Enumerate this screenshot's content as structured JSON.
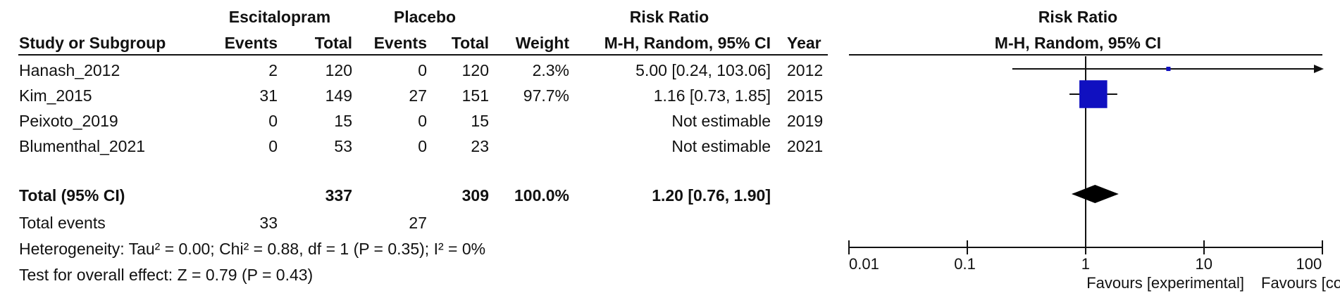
{
  "header": {
    "exp_group": "Escitalopram",
    "ctl_group": "Placebo",
    "risk_ratio": "Risk Ratio",
    "study_col": "Study or Subgroup",
    "events": "Events",
    "total": "Total",
    "weight": "Weight",
    "method": "M-H, Random, 95% CI",
    "year": "Year",
    "plot_title": "Risk Ratio",
    "plot_method": "M-H, Random, 95% CI"
  },
  "studies": [
    {
      "name": "Hanash_2012",
      "exp_events": "2",
      "exp_total": "120",
      "ctl_events": "0",
      "ctl_total": "120",
      "weight": "2.3%",
      "ci": "5.00 [0.24, 103.06]",
      "year": "2012"
    },
    {
      "name": "Kim_2015",
      "exp_events": "31",
      "exp_total": "149",
      "ctl_events": "27",
      "ctl_total": "151",
      "weight": "97.7%",
      "ci": "1.16 [0.73, 1.85]",
      "year": "2015"
    },
    {
      "name": "Peixoto_2019",
      "exp_events": "0",
      "exp_total": "15",
      "ctl_events": "0",
      "ctl_total": "15",
      "weight": "",
      "ci": "Not estimable",
      "year": "2019"
    },
    {
      "name": "Blumenthal_2021",
      "exp_events": "0",
      "exp_total": "53",
      "ctl_events": "0",
      "ctl_total": "23",
      "weight": "",
      "ci": "Not estimable",
      "year": "2021"
    }
  ],
  "total": {
    "label": "Total (95% CI)",
    "exp_total": "337",
    "ctl_total": "309",
    "weight": "100.0%",
    "ci": "1.20 [0.76, 1.90]",
    "events_label": "Total events",
    "exp_events": "33",
    "ctl_events": "27"
  },
  "stats": {
    "heterogeneity": "Heterogeneity: Tau² = 0.00; Chi² = 0.88, df = 1 (P = 0.35); I² = 0%",
    "overall": "Test for overall effect: Z = 0.79 (P = 0.43)"
  },
  "axis": {
    "favours_left": "Favours [experimental]",
    "favours_right": "Favours [control]"
  },
  "chart_data": {
    "type": "forest",
    "scale": "log",
    "xlim": [
      0.01,
      100
    ],
    "ticks": [
      {
        "value": 0.01,
        "label": "0.01"
      },
      {
        "value": 0.1,
        "label": "0.1"
      },
      {
        "value": 1,
        "label": "1"
      },
      {
        "value": 10,
        "label": "10"
      },
      {
        "value": 100,
        "label": "100"
      }
    ],
    "points": [
      {
        "study": "Hanash_2012",
        "rr": 5.0,
        "lower": 0.24,
        "upper": 103.06,
        "weight": 2.3
      },
      {
        "study": "Kim_2015",
        "rr": 1.16,
        "lower": 0.73,
        "upper": 1.85,
        "weight": 97.7
      }
    ],
    "summary": {
      "rr": 1.2,
      "lower": 0.76,
      "upper": 1.9
    },
    "colors": {
      "square": "#1010c0",
      "diamond": "#000000"
    }
  }
}
